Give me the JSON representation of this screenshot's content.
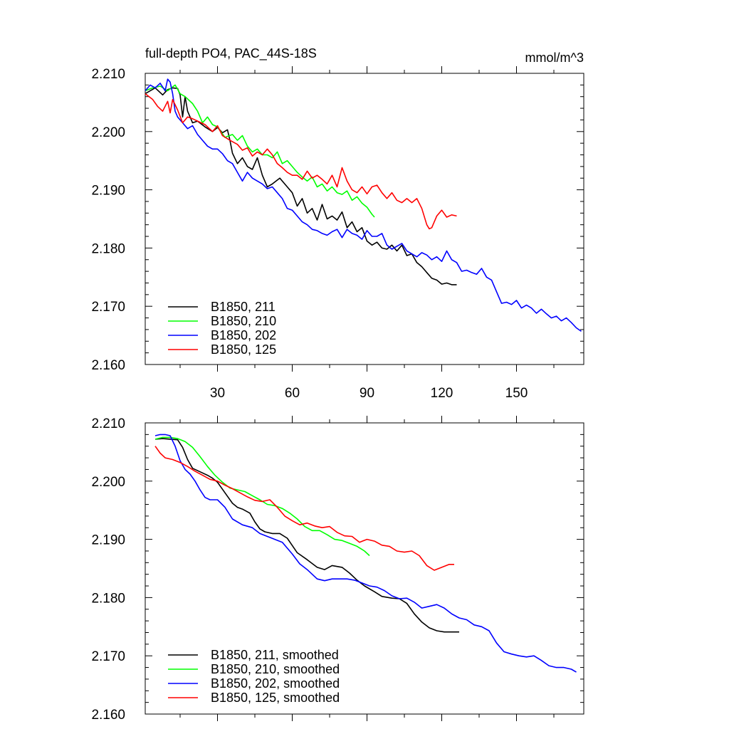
{
  "chart_data": [
    {
      "type": "line",
      "title": "full-depth PO4, PAC_44S-18S",
      "units": "mmol/m^3",
      "xlim": [
        1,
        177
      ],
      "ylim": [
        2.16,
        2.21
      ],
      "y_ticks": [
        "2.160",
        "2.170",
        "2.180",
        "2.190",
        "2.200",
        "2.210"
      ],
      "x_ticks": [
        "30",
        "60",
        "90",
        "120",
        "150"
      ],
      "grid": false,
      "legend_position": "bottom-left",
      "series": [
        {
          "name": "B1850, 211",
          "color": "#000000",
          "x": [
            1,
            5,
            8,
            10,
            12,
            14,
            15,
            16,
            17,
            18,
            20,
            22,
            25,
            28,
            30,
            32,
            34,
            35,
            36,
            38,
            40,
            42,
            44,
            46,
            48,
            50,
            52,
            55,
            58,
            60,
            62,
            64,
            66,
            68,
            70,
            72,
            74,
            76,
            78,
            80,
            82,
            84,
            86,
            88,
            90,
            92,
            94,
            96,
            98,
            100,
            102,
            104,
            106,
            108,
            110,
            112,
            114,
            116,
            118,
            120,
            122,
            124,
            126
          ],
          "y": [
            2.2065,
            2.2075,
            2.2063,
            2.2072,
            2.2075,
            2.2074,
            2.2063,
            2.2025,
            2.206,
            2.2035,
            2.2015,
            2.2018,
            2.2008,
            2.2,
            2.2007,
            2.1998,
            2.2003,
            2.1985,
            2.1963,
            2.1945,
            2.1955,
            2.194,
            2.1935,
            2.1955,
            2.1925,
            2.1905,
            2.191,
            2.192,
            2.1905,
            2.1895,
            2.1872,
            2.1885,
            2.186,
            2.1868,
            2.1848,
            2.1875,
            2.185,
            2.1855,
            2.1848,
            2.1862,
            2.1835,
            2.1845,
            2.1828,
            2.1835,
            2.1812,
            2.1805,
            2.181,
            2.18,
            2.1798,
            2.1805,
            2.1795,
            2.1805,
            2.1787,
            2.179,
            2.1775,
            2.1768,
            2.1758,
            2.1748,
            2.1745,
            2.1738,
            2.174,
            2.1737,
            2.1737
          ]
        },
        {
          "name": "B1850, 210",
          "color": "#00ff00",
          "x": [
            1,
            4,
            7,
            10,
            13,
            15,
            17,
            20,
            22,
            24,
            26,
            28,
            30,
            33,
            36,
            38,
            40,
            42,
            44,
            46,
            48,
            50,
            52,
            54,
            56,
            58,
            60,
            62,
            64,
            66,
            68,
            70,
            72,
            74,
            76,
            78,
            80,
            82,
            84,
            86,
            88,
            90,
            92,
            93
          ],
          "y": [
            2.207,
            2.2075,
            2.2078,
            2.207,
            2.208,
            2.2065,
            2.206,
            2.2048,
            2.2035,
            2.2015,
            2.2025,
            2.2012,
            2.2008,
            2.199,
            2.1995,
            2.1985,
            2.1993,
            2.1975,
            2.1965,
            2.197,
            2.196,
            2.196,
            2.1955,
            2.1965,
            2.1945,
            2.195,
            2.194,
            2.193,
            2.1922,
            2.1915,
            2.1922,
            2.1905,
            2.191,
            2.1898,
            2.1905,
            2.1895,
            2.1892,
            2.1898,
            2.1882,
            2.1888,
            2.1877,
            2.187,
            2.1858,
            2.1853
          ]
        },
        {
          "name": "B1850, 202",
          "color": "#0000ff",
          "x": [
            1,
            3,
            5,
            7,
            9,
            10,
            11,
            12,
            13,
            14,
            16,
            18,
            20,
            22,
            24,
            26,
            28,
            30,
            32,
            34,
            36,
            38,
            40,
            42,
            44,
            46,
            48,
            50,
            52,
            54,
            56,
            58,
            60,
            62,
            64,
            66,
            68,
            70,
            72,
            74,
            76,
            78,
            80,
            82,
            84,
            86,
            88,
            90,
            92,
            94,
            96,
            98,
            100,
            102,
            104,
            106,
            108,
            110,
            112,
            114,
            116,
            118,
            120,
            122,
            124,
            126,
            128,
            130,
            132,
            134,
            136,
            138,
            140,
            142,
            144,
            146,
            148,
            150,
            152,
            154,
            156,
            158,
            160,
            162,
            164,
            166,
            168,
            170,
            172,
            174,
            176
          ],
          "y": [
            2.207,
            2.208,
            2.2075,
            2.2083,
            2.207,
            2.209,
            2.2085,
            2.2065,
            2.2035,
            2.2025,
            2.2015,
            2.2005,
            2.201,
            2.1995,
            2.1985,
            2.1975,
            2.197,
            2.197,
            2.1962,
            2.195,
            2.1945,
            2.193,
            2.1915,
            2.193,
            2.192,
            2.1915,
            2.191,
            2.1902,
            2.1905,
            2.1895,
            2.1885,
            2.1868,
            2.1865,
            2.1855,
            2.1845,
            2.184,
            2.1832,
            2.183,
            2.1825,
            2.1822,
            2.1828,
            2.1832,
            2.1818,
            2.1832,
            2.1825,
            2.1822,
            2.1815,
            2.183,
            2.182,
            2.182,
            2.1825,
            2.1805,
            2.1798,
            2.1803,
            2.1808,
            2.1795,
            2.179,
            2.1785,
            2.1792,
            2.1788,
            2.178,
            2.1785,
            2.1777,
            2.1795,
            2.178,
            2.1775,
            2.176,
            2.1762,
            2.1758,
            2.1755,
            2.1765,
            2.175,
            2.1745,
            2.1725,
            2.1705,
            2.1707,
            2.1703,
            2.171,
            2.1697,
            2.1702,
            2.1697,
            2.1688,
            2.1695,
            2.1687,
            2.168,
            2.1683,
            2.1675,
            2.168,
            2.1672,
            2.1663,
            2.1657
          ]
        },
        {
          "name": "B1850, 125",
          "color": "#ff0000",
          "x": [
            1,
            4,
            6,
            8,
            10,
            11,
            12,
            14,
            16,
            18,
            20,
            22,
            25,
            28,
            30,
            32,
            35,
            38,
            40,
            42,
            44,
            46,
            48,
            50,
            52,
            54,
            56,
            58,
            60,
            62,
            64,
            66,
            68,
            70,
            72,
            74,
            76,
            78,
            80,
            82,
            84,
            86,
            88,
            90,
            92,
            94,
            96,
            98,
            100,
            102,
            104,
            106,
            108,
            110,
            112,
            114,
            115,
            116,
            118,
            120,
            122,
            124,
            126
          ],
          "y": [
            2.2065,
            2.2055,
            2.2043,
            2.2035,
            2.2052,
            2.2032,
            2.2055,
            2.2037,
            2.2015,
            2.2025,
            2.2022,
            2.2018,
            2.2012,
            2.2,
            2.201,
            2.1993,
            2.1985,
            2.1978,
            2.1968,
            2.1972,
            2.1958,
            2.1965,
            2.196,
            2.197,
            2.196,
            2.1945,
            2.1938,
            2.193,
            2.1925,
            2.1925,
            2.1918,
            2.1932,
            2.192,
            2.1925,
            2.1918,
            2.191,
            2.1925,
            2.1905,
            2.1938,
            2.1915,
            2.19,
            2.1895,
            2.1905,
            2.1893,
            2.1905,
            2.1908,
            2.1895,
            2.1885,
            2.1895,
            2.1882,
            2.1878,
            2.1885,
            2.1878,
            2.1885,
            2.1868,
            2.184,
            2.1833,
            2.1835,
            2.1855,
            2.1865,
            2.1853,
            2.1857,
            2.1855
          ]
        }
      ],
      "legend": [
        "B1850, 211",
        "B1850, 210",
        "B1850, 202",
        "B1850, 125"
      ]
    },
    {
      "type": "line",
      "title": "",
      "xlim": [
        1,
        177
      ],
      "ylim": [
        2.16,
        2.21
      ],
      "y_ticks": [
        "2.160",
        "2.170",
        "2.180",
        "2.190",
        "2.200",
        "2.210"
      ],
      "x_ticks": [],
      "grid": false,
      "legend_position": "bottom-left",
      "series": [
        {
          "name": "B1850, 211, smoothed",
          "color": "#000000",
          "x": [
            5,
            8,
            11,
            14,
            16,
            18,
            20,
            23,
            26,
            28,
            30,
            33,
            36,
            38,
            40,
            43,
            45,
            47,
            49,
            52,
            55,
            58,
            62,
            66,
            70,
            73,
            76,
            80,
            83,
            86,
            89,
            93,
            96,
            100,
            103,
            106,
            109,
            112,
            115,
            118,
            121,
            124,
            127
          ],
          "y": [
            2.2072,
            2.2073,
            2.2072,
            2.2071,
            2.2058,
            2.2037,
            2.2022,
            2.2016,
            2.201,
            2.2005,
            2.1998,
            2.198,
            2.1962,
            2.1955,
            2.1952,
            2.1945,
            2.193,
            2.1918,
            2.1913,
            2.191,
            2.191,
            2.1902,
            2.1877,
            2.1865,
            2.1852,
            2.1848,
            2.1855,
            2.1852,
            2.1842,
            2.183,
            2.182,
            2.181,
            2.1802,
            2.1799,
            2.1798,
            2.179,
            2.1772,
            2.1758,
            2.1748,
            2.1743,
            2.1741,
            2.1741,
            2.1741
          ]
        },
        {
          "name": "B1850, 210, smoothed",
          "color": "#00ff00",
          "x": [
            5,
            8,
            11,
            14,
            17,
            20,
            23,
            26,
            29,
            32,
            35,
            38,
            41,
            44,
            47,
            50,
            53,
            56,
            59,
            62,
            65,
            68,
            71,
            74,
            77,
            80,
            83,
            86,
            89,
            91
          ],
          "y": [
            2.2072,
            2.2075,
            2.2075,
            2.2073,
            2.2068,
            2.2058,
            2.2042,
            2.2025,
            2.201,
            2.1998,
            2.1988,
            2.1985,
            2.1982,
            2.1975,
            2.1968,
            2.196,
            2.1958,
            2.1953,
            2.1945,
            2.1935,
            2.1922,
            2.1915,
            2.1915,
            2.1908,
            2.19,
            2.1898,
            2.1893,
            2.1888,
            2.188,
            2.1872
          ]
        },
        {
          "name": "B1850, 202, smoothed",
          "color": "#0000ff",
          "x": [
            5,
            7,
            9,
            11,
            13,
            15,
            17,
            19,
            21,
            23,
            25,
            27,
            30,
            33,
            36,
            40,
            44,
            47,
            50,
            53,
            56,
            60,
            63,
            66,
            70,
            73,
            76,
            79,
            82,
            85,
            88,
            91,
            94,
            97,
            100,
            103,
            106,
            109,
            112,
            115,
            118,
            121,
            124,
            127,
            130,
            133,
            136,
            139,
            142,
            145,
            148,
            151,
            154,
            157,
            160,
            163,
            166,
            169,
            172,
            174
          ],
          "y": [
            2.2078,
            2.208,
            2.208,
            2.2078,
            2.206,
            2.2035,
            2.202,
            2.2012,
            2.2,
            2.1985,
            2.1972,
            2.1968,
            2.1968,
            2.1955,
            2.1935,
            2.1925,
            2.192,
            2.191,
            2.1905,
            2.19,
            2.1895,
            2.1875,
            2.1858,
            2.1848,
            2.1832,
            2.1829,
            2.1832,
            2.1832,
            2.1832,
            2.183,
            2.1825,
            2.182,
            2.1818,
            2.1812,
            2.1803,
            2.1798,
            2.1799,
            2.1792,
            2.1782,
            2.1785,
            2.1788,
            2.1782,
            2.1772,
            2.1765,
            2.1762,
            2.1753,
            2.175,
            2.1743,
            2.1722,
            2.1707,
            2.1703,
            2.17,
            2.1698,
            2.17,
            2.1692,
            2.1683,
            2.168,
            2.168,
            2.1677,
            2.1672
          ]
        },
        {
          "name": "B1850, 125, smoothed",
          "color": "#ff0000",
          "x": [
            5,
            7,
            9,
            12,
            15,
            18,
            21,
            24,
            27,
            30,
            33,
            36,
            39,
            42,
            45,
            48,
            51,
            54,
            57,
            60,
            63,
            66,
            69,
            72,
            75,
            78,
            81,
            84,
            87,
            90,
            93,
            96,
            99,
            102,
            105,
            108,
            111,
            114,
            117,
            120,
            123,
            125
          ],
          "y": [
            2.206,
            2.2048,
            2.204,
            2.2037,
            2.2032,
            2.2025,
            2.2017,
            2.201,
            2.2003,
            2.2,
            2.1993,
            2.1987,
            2.198,
            2.1973,
            2.1967,
            2.1965,
            2.1968,
            2.1955,
            2.194,
            2.1932,
            2.1925,
            2.1928,
            2.1923,
            2.192,
            2.1922,
            2.1912,
            2.1906,
            2.1905,
            2.1895,
            2.19,
            2.1897,
            2.189,
            2.1888,
            2.188,
            2.1878,
            2.188,
            2.1872,
            2.1855,
            2.1847,
            2.1852,
            2.1857,
            2.1857
          ]
        }
      ],
      "legend": [
        "B1850, 211, smoothed",
        "B1850, 210, smoothed",
        "B1850, 202, smoothed",
        "B1850, 125, smoothed"
      ]
    }
  ]
}
